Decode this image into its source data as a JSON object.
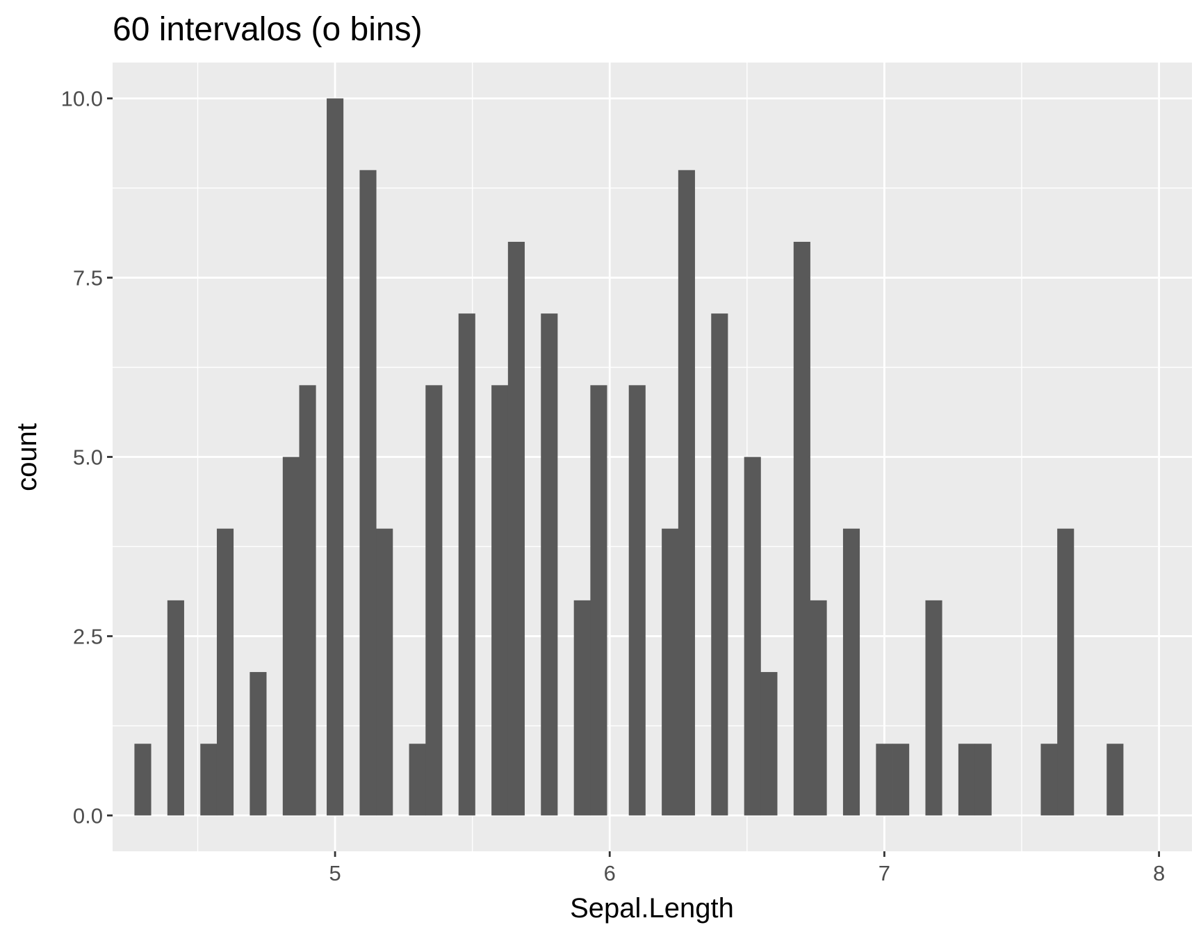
{
  "chart_data": {
    "type": "bar",
    "title": "60 intervalos (o bins)",
    "xlabel": "Sepal.Length",
    "ylabel": "count",
    "xlim": [
      4.19,
      8.12
    ],
    "ylim": [
      -0.5,
      10.5
    ],
    "x_ticks": [
      5,
      6,
      7,
      8
    ],
    "x_tick_labels": [
      "5",
      "6",
      "7",
      "8"
    ],
    "y_ticks": [
      0,
      2.5,
      5,
      7.5,
      10
    ],
    "y_tick_labels": [
      "0.0",
      "2.5",
      "5.0",
      "7.5",
      "10.0"
    ],
    "bin_width": 0.061,
    "bars": [
      {
        "x": 4.3,
        "count": 1
      },
      {
        "x": 4.42,
        "count": 3
      },
      {
        "x": 4.54,
        "count": 1
      },
      {
        "x": 4.6,
        "count": 4
      },
      {
        "x": 4.72,
        "count": 2
      },
      {
        "x": 4.84,
        "count": 5
      },
      {
        "x": 4.9,
        "count": 6
      },
      {
        "x": 5.0,
        "count": 10
      },
      {
        "x": 5.12,
        "count": 9
      },
      {
        "x": 5.18,
        "count": 4
      },
      {
        "x": 5.3,
        "count": 1
      },
      {
        "x": 5.36,
        "count": 6
      },
      {
        "x": 5.48,
        "count": 7
      },
      {
        "x": 5.6,
        "count": 6
      },
      {
        "x": 5.66,
        "count": 8
      },
      {
        "x": 5.78,
        "count": 7
      },
      {
        "x": 5.9,
        "count": 3
      },
      {
        "x": 5.96,
        "count": 6
      },
      {
        "x": 6.1,
        "count": 6
      },
      {
        "x": 6.22,
        "count": 4
      },
      {
        "x": 6.28,
        "count": 9
      },
      {
        "x": 6.4,
        "count": 7
      },
      {
        "x": 6.52,
        "count": 5
      },
      {
        "x": 6.58,
        "count": 2
      },
      {
        "x": 6.7,
        "count": 8
      },
      {
        "x": 6.76,
        "count": 3
      },
      {
        "x": 6.88,
        "count": 4
      },
      {
        "x": 7.0,
        "count": 1
      },
      {
        "x": 7.06,
        "count": 1
      },
      {
        "x": 7.18,
        "count": 3
      },
      {
        "x": 7.3,
        "count": 1
      },
      {
        "x": 7.36,
        "count": 1
      },
      {
        "x": 7.6,
        "count": 1
      },
      {
        "x": 7.66,
        "count": 4
      },
      {
        "x": 7.84,
        "count": 1
      }
    ],
    "grid": true,
    "legend": "none",
    "colors": {
      "bar": "#595959",
      "panel": "#EBEBEB",
      "grid": "#FFFFFF",
      "tick_text": "#4D4D4D",
      "tick_mark": "#333333",
      "title": "#000000"
    }
  }
}
